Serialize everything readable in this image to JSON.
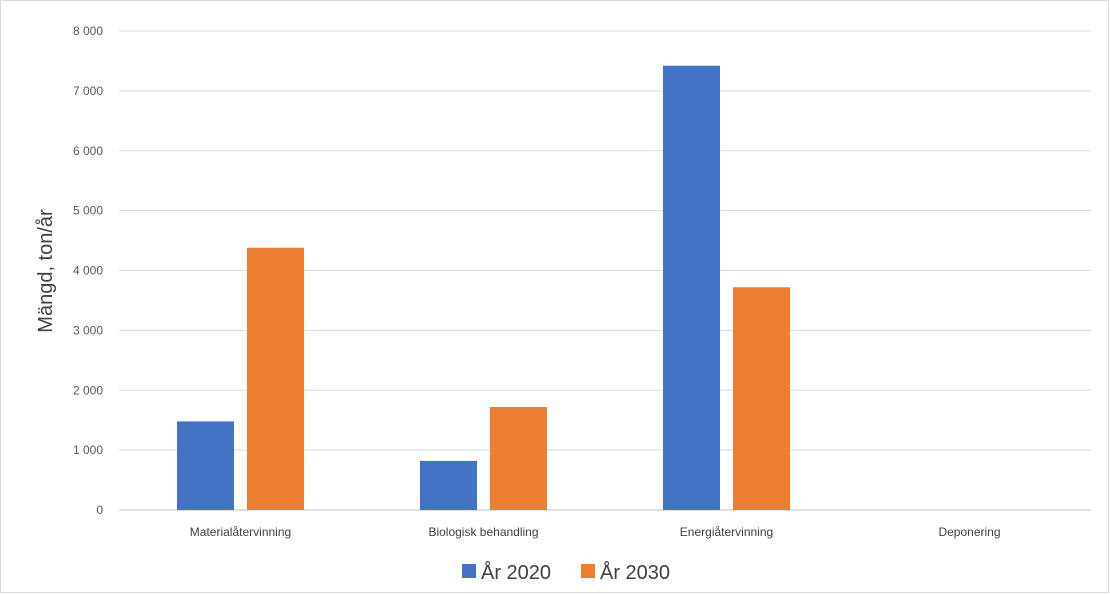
{
  "chart_data": {
    "type": "bar",
    "categories": [
      "Materialåtervinning",
      "Biologisk behandling",
      "Energiåtervinning",
      "Deponering"
    ],
    "series": [
      {
        "name": "År 2020",
        "values": [
          1480,
          820,
          7420,
          0
        ],
        "color": "#4472C4"
      },
      {
        "name": "År 2030",
        "values": [
          4380,
          1720,
          3720,
          0
        ],
        "color": "#ED7D31"
      }
    ],
    "ylabel": "Mängd, ton/år",
    "xlabel": "",
    "ylim": [
      0,
      8000
    ],
    "yticks": [
      0,
      1000,
      2000,
      3000,
      4000,
      5000,
      6000,
      7000,
      8000
    ],
    "ytick_labels": [
      "0",
      "1 000",
      "2 000",
      "3 000",
      "4 000",
      "5 000",
      "6 000",
      "7 000",
      "8 000"
    ],
    "grid": true,
    "legend_position": "bottom"
  }
}
